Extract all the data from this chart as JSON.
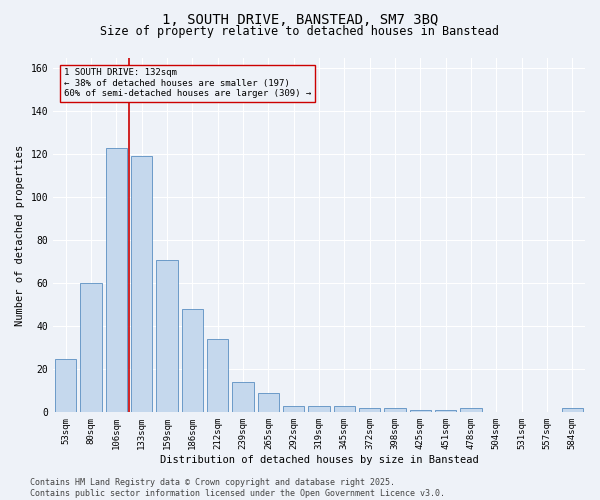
{
  "title": "1, SOUTH DRIVE, BANSTEAD, SM7 3BQ",
  "subtitle": "Size of property relative to detached houses in Banstead",
  "xlabel": "Distribution of detached houses by size in Banstead",
  "ylabel": "Number of detached properties",
  "categories": [
    "53sqm",
    "80sqm",
    "106sqm",
    "133sqm",
    "159sqm",
    "186sqm",
    "212sqm",
    "239sqm",
    "265sqm",
    "292sqm",
    "319sqm",
    "345sqm",
    "372sqm",
    "398sqm",
    "425sqm",
    "451sqm",
    "478sqm",
    "504sqm",
    "531sqm",
    "557sqm",
    "584sqm"
  ],
  "values": [
    25,
    60,
    123,
    119,
    71,
    48,
    34,
    14,
    9,
    3,
    3,
    3,
    2,
    2,
    1,
    1,
    2,
    0,
    0,
    0,
    2
  ],
  "bar_color": "#c5d8ed",
  "bar_edge_color": "#5a8fc2",
  "vline_color": "#cc0000",
  "vline_pos": 2.5,
  "annotation_box_text": "1 SOUTH DRIVE: 132sqm\n← 38% of detached houses are smaller (197)\n60% of semi-detached houses are larger (309) →",
  "annotation_box_color": "#cc0000",
  "ylim": [
    0,
    165
  ],
  "yticks": [
    0,
    20,
    40,
    60,
    80,
    100,
    120,
    140,
    160
  ],
  "footer_line1": "Contains HM Land Registry data © Crown copyright and database right 2025.",
  "footer_line2": "Contains public sector information licensed under the Open Government Licence v3.0.",
  "bg_color": "#eef2f8",
  "grid_color": "#ffffff",
  "title_fontsize": 10,
  "subtitle_fontsize": 8.5,
  "axis_label_fontsize": 7.5,
  "tick_fontsize": 6.5,
  "annotation_fontsize": 6.5,
  "footer_fontsize": 6.0
}
